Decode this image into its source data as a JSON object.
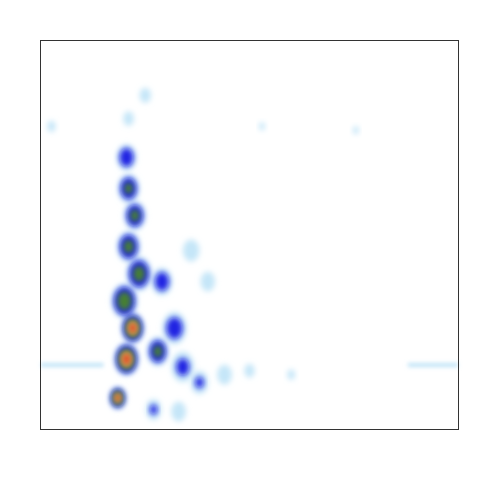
{
  "chart_data": {
    "type": "heatmap",
    "title": "",
    "xlabel": "",
    "ylabel": "",
    "xlim": [
      0,
      100
    ],
    "ylim": [
      0,
      100
    ],
    "grid": false,
    "legend": "none",
    "colormap": [
      "#ffffff",
      "#bfe3f7",
      "#1010e0",
      "#4a8a1c",
      "#eec070",
      "#e04020"
    ],
    "hotspots": [
      {
        "x": 18.4,
        "y": 8.0,
        "density": 0.95,
        "spread": 2.2
      },
      {
        "x": 20.5,
        "y": 18.0,
        "density": 1.0,
        "spread": 3.2
      },
      {
        "x": 22.0,
        "y": 26.0,
        "density": 0.98,
        "spread": 3.0
      },
      {
        "x": 20.0,
        "y": 33.0,
        "density": 0.75,
        "spread": 3.5
      },
      {
        "x": 23.5,
        "y": 40.0,
        "density": 0.65,
        "spread": 3.5
      },
      {
        "x": 21.0,
        "y": 47.0,
        "density": 0.62,
        "spread": 3.2
      },
      {
        "x": 22.5,
        "y": 55.0,
        "density": 0.6,
        "spread": 3.0
      },
      {
        "x": 21.0,
        "y": 62.0,
        "density": 0.58,
        "spread": 3.0
      },
      {
        "x": 20.5,
        "y": 70.0,
        "density": 0.5,
        "spread": 2.8
      },
      {
        "x": 28.0,
        "y": 20.0,
        "density": 0.6,
        "spread": 3.0
      },
      {
        "x": 32.0,
        "y": 26.0,
        "density": 0.45,
        "spread": 3.5
      },
      {
        "x": 29.0,
        "y": 38.0,
        "density": 0.45,
        "spread": 3.0
      },
      {
        "x": 34.0,
        "y": 16.0,
        "density": 0.35,
        "spread": 3.5
      },
      {
        "x": 38.0,
        "y": 12.0,
        "density": 0.3,
        "spread": 2.8
      },
      {
        "x": 44.0,
        "y": 14.0,
        "density": 0.25,
        "spread": 2.5
      },
      {
        "x": 36.0,
        "y": 46.0,
        "density": 0.25,
        "spread": 2.8
      },
      {
        "x": 40.0,
        "y": 38.0,
        "density": 0.22,
        "spread": 2.6
      },
      {
        "x": 27.0,
        "y": 5.0,
        "density": 0.3,
        "spread": 2.5
      },
      {
        "x": 33.0,
        "y": 4.5,
        "density": 0.25,
        "spread": 2.5
      },
      {
        "x": 25.0,
        "y": 86.0,
        "density": 0.22,
        "spread": 2.0
      },
      {
        "x": 21.0,
        "y": 80.0,
        "density": 0.2,
        "spread": 2.0
      },
      {
        "x": 2.5,
        "y": 78.0,
        "density": 0.22,
        "spread": 1.5
      },
      {
        "x": 53.0,
        "y": 78.0,
        "density": 0.18,
        "spread": 1.2
      },
      {
        "x": 75.5,
        "y": 77.0,
        "density": 0.18,
        "spread": 1.2
      },
      {
        "x": 50.0,
        "y": 15.0,
        "density": 0.18,
        "spread": 2.0
      },
      {
        "x": 60.0,
        "y": 14.0,
        "density": 0.12,
        "spread": 2.0
      }
    ],
    "bands": [
      {
        "y": 16.5,
        "x_from": 0,
        "x_to": 15,
        "density": 0.18
      },
      {
        "y": 16.5,
        "x_from": 88,
        "x_to": 100,
        "density": 0.12
      }
    ]
  }
}
